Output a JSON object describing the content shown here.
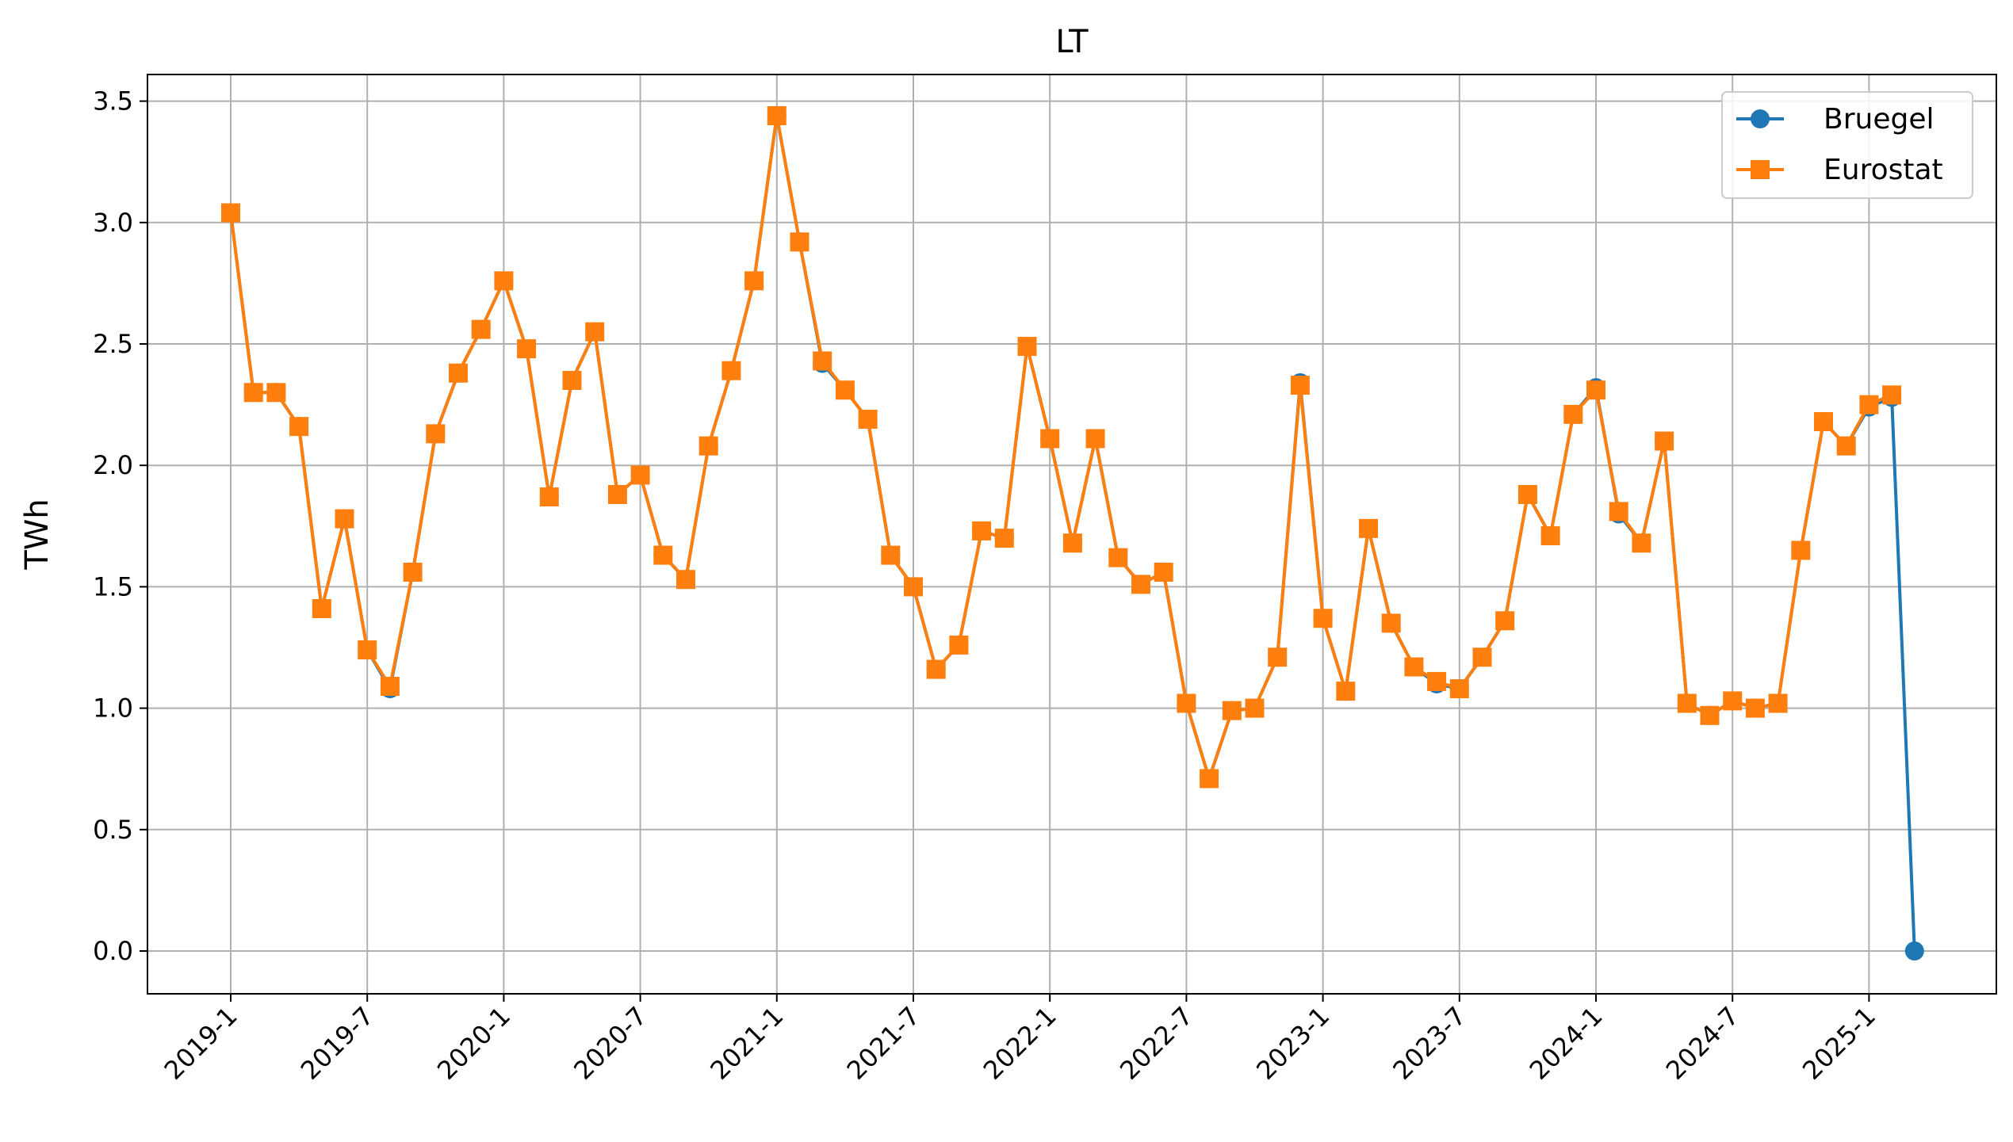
{
  "chart_data": {
    "type": "line",
    "title": "LT",
    "xlabel": "",
    "ylabel": "TWh",
    "ylim": [
      -0.17,
      3.62
    ],
    "grid": true,
    "legend_position": "upper right",
    "x": [
      "2019-1",
      "2019-2",
      "2019-3",
      "2019-4",
      "2019-5",
      "2019-6",
      "2019-7",
      "2019-8",
      "2019-9",
      "2019-10",
      "2019-11",
      "2019-12",
      "2020-1",
      "2020-2",
      "2020-3",
      "2020-4",
      "2020-5",
      "2020-6",
      "2020-7",
      "2020-8",
      "2020-9",
      "2020-10",
      "2020-11",
      "2020-12",
      "2021-1",
      "2021-2",
      "2021-3",
      "2021-4",
      "2021-5",
      "2021-6",
      "2021-7",
      "2021-8",
      "2021-9",
      "2021-10",
      "2021-11",
      "2021-12",
      "2022-1",
      "2022-2",
      "2022-3",
      "2022-4",
      "2022-5",
      "2022-6",
      "2022-7",
      "2022-8",
      "2022-9",
      "2022-10",
      "2022-11",
      "2022-12",
      "2023-1",
      "2023-2",
      "2023-3",
      "2023-4",
      "2023-5",
      "2023-6",
      "2023-7",
      "2023-8",
      "2023-9",
      "2023-10",
      "2023-11",
      "2023-12",
      "2024-1",
      "2024-2",
      "2024-3",
      "2024-4",
      "2024-5",
      "2024-6",
      "2024-7",
      "2024-8",
      "2024-9",
      "2024-10",
      "2024-11",
      "2024-12",
      "2025-1",
      "2025-2",
      "2025-3"
    ],
    "x_ticks": [
      "2019-1",
      "2019-7",
      "2020-1",
      "2020-7",
      "2021-1",
      "2021-7",
      "2022-1",
      "2022-7",
      "2023-1",
      "2023-7",
      "2024-1",
      "2024-7",
      "2025-1"
    ],
    "y_ticks": [
      "0.0",
      "0.5",
      "1.0",
      "1.5",
      "2.0",
      "2.5",
      "3.0",
      "3.5"
    ],
    "series": [
      {
        "name": "Bruegel",
        "color": "#1f77b4",
        "marker": "circle",
        "values": [
          3.04,
          2.3,
          2.3,
          2.16,
          1.41,
          1.78,
          1.24,
          1.08,
          1.56,
          2.13,
          2.38,
          2.56,
          2.76,
          2.48,
          1.87,
          2.35,
          2.55,
          1.88,
          1.96,
          1.63,
          1.53,
          2.08,
          2.39,
          2.76,
          3.44,
          2.92,
          2.42,
          2.31,
          2.19,
          1.63,
          1.5,
          1.16,
          1.26,
          1.73,
          1.7,
          2.49,
          2.11,
          1.68,
          2.11,
          1.62,
          1.51,
          1.56,
          1.02,
          0.71,
          0.99,
          1.0,
          1.21,
          2.34,
          1.37,
          1.07,
          1.74,
          1.35,
          1.17,
          1.1,
          1.08,
          1.21,
          1.36,
          1.88,
          1.71,
          2.21,
          2.32,
          1.8,
          1.68,
          2.1,
          1.02,
          0.97,
          1.03,
          1.0,
          1.02,
          1.65,
          2.18,
          2.08,
          2.24,
          2.28,
          0.0
        ]
      },
      {
        "name": "Eurostat",
        "color": "#ff7f0e",
        "marker": "square",
        "values": [
          3.04,
          2.3,
          2.3,
          2.16,
          1.41,
          1.78,
          1.24,
          1.09,
          1.56,
          2.13,
          2.38,
          2.56,
          2.76,
          2.48,
          1.87,
          2.35,
          2.55,
          1.88,
          1.96,
          1.63,
          1.53,
          2.08,
          2.39,
          2.76,
          3.44,
          2.92,
          2.43,
          2.31,
          2.19,
          1.63,
          1.5,
          1.16,
          1.26,
          1.73,
          1.7,
          2.49,
          2.11,
          1.68,
          2.11,
          1.62,
          1.51,
          1.56,
          1.02,
          0.71,
          0.99,
          1.0,
          1.21,
          2.33,
          1.37,
          1.07,
          1.74,
          1.35,
          1.17,
          1.11,
          1.08,
          1.21,
          1.36,
          1.88,
          1.71,
          2.21,
          2.31,
          1.81,
          1.68,
          2.1,
          1.02,
          0.97,
          1.03,
          1.0,
          1.02,
          1.65,
          2.18,
          2.08,
          2.25,
          2.29,
          null
        ]
      }
    ]
  }
}
